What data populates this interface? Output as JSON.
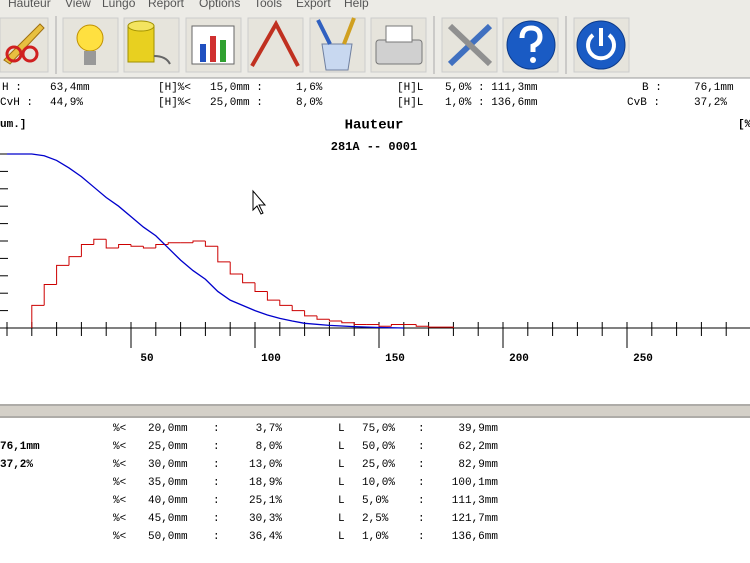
{
  "menu": [
    "Hauteur",
    "View",
    "Lungo",
    "Report",
    "Options",
    "Tools",
    "Export",
    "Help"
  ],
  "header_stats": {
    "rows": [
      [
        "H :",
        "63,4mm",
        "[H]%<",
        "15,0mm :",
        "1,6%",
        "[H]L",
        "5,0% : 111,3mm",
        "B :",
        "76,1mm"
      ],
      [
        "CvH :",
        "44,9%",
        "[H]%<",
        "25,0mm :",
        "8,0%",
        "[H]L",
        "1,0% : 136,6mm",
        "CvB :",
        "37,2%"
      ]
    ]
  },
  "chart_data": {
    "type": "histogram",
    "title": "Hauteur",
    "subtitle": "281A -- 0001",
    "y_label": "um.]",
    "y2_label": "[%",
    "bins": [
      10,
      15,
      20,
      25,
      30,
      35,
      40,
      45,
      50,
      55,
      60,
      65,
      70,
      75,
      80,
      85,
      90,
      95,
      100,
      105,
      110,
      115,
      120,
      125,
      130,
      135,
      140,
      145,
      150,
      155,
      160,
      165,
      170,
      175,
      180
    ],
    "counts": [
      13,
      25,
      36,
      41,
      48,
      51,
      46,
      48,
      47,
      46,
      48,
      49,
      49,
      50,
      47,
      38,
      31,
      26,
      21,
      16,
      13,
      10,
      7,
      5,
      4,
      3,
      2,
      2,
      1,
      2,
      2,
      1,
      0.5,
      0.5
    ],
    "color": "#cc0000",
    "overlay": {
      "type": "line",
      "color": "#0000cc",
      "x": [
        0,
        10,
        15,
        20,
        25,
        30,
        35,
        40,
        45,
        50,
        55,
        60,
        65,
        70,
        75,
        80,
        85,
        90,
        95,
        100,
        105,
        110,
        115,
        120,
        130,
        140,
        150,
        160
      ],
      "values": [
        100,
        100,
        99,
        96.3,
        92,
        87,
        81,
        75,
        70,
        64,
        58,
        53,
        46,
        39,
        33,
        28,
        21,
        16,
        13,
        10,
        7.5,
        5.5,
        4,
        2.7,
        1.5,
        0.8,
        0.3,
        0
      ]
    },
    "xlim": [
      -3,
      300
    ],
    "xticks": [
      50,
      100,
      150,
      200,
      250
    ],
    "xticks_minor": [
      0,
      10,
      20,
      30,
      40,
      60,
      70,
      80,
      90,
      110,
      120,
      130,
      140,
      160,
      170,
      180,
      190,
      210,
      220,
      230,
      240,
      260,
      270,
      280,
      290
    ],
    "ylim": [
      0,
      100
    ],
    "yticks": [
      0,
      10,
      20,
      30,
      40,
      50,
      60,
      70,
      80,
      90,
      100
    ]
  },
  "table": {
    "left": [
      "76,1mm",
      "37,2%"
    ],
    "rows": [
      [
        "%<",
        "20,0mm",
        ":",
        "3,7%",
        "L",
        "75,0%",
        ":",
        "39,9mm"
      ],
      [
        "%<",
        "25,0mm",
        ":",
        "8,0%",
        "L",
        "50,0%",
        ":",
        "62,2mm"
      ],
      [
        "%<",
        "30,0mm",
        ":",
        "13,0%",
        "L",
        "25,0%",
        ":",
        "82,9mm"
      ],
      [
        "%<",
        "35,0mm",
        ":",
        "18,9%",
        "L",
        "10,0%",
        ":",
        "100,1mm"
      ],
      [
        "%<",
        "40,0mm",
        ":",
        "25,1%",
        "L",
        "5,0%",
        ":",
        "111,3mm"
      ],
      [
        "%<",
        "45,0mm",
        ":",
        "30,3%",
        "L",
        "2,5%",
        ":",
        "121,7mm"
      ],
      [
        "%<",
        "50,0mm",
        ":",
        "36,4%",
        "L",
        "1,0%",
        ":",
        "136,6mm"
      ]
    ]
  }
}
